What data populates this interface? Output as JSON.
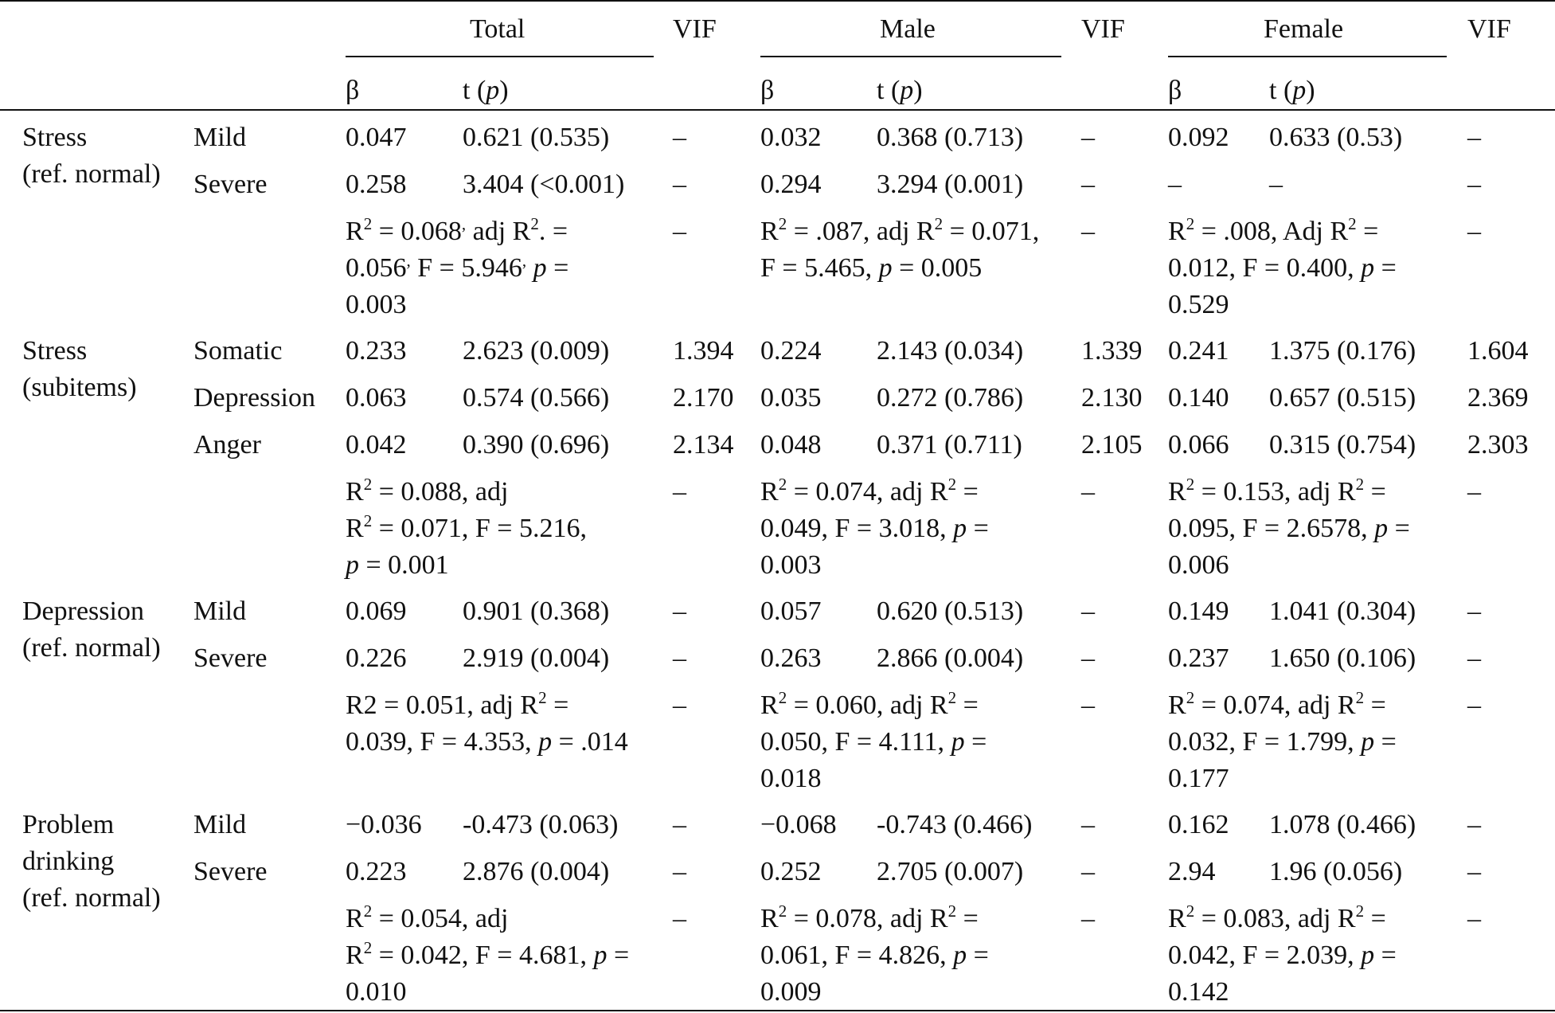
{
  "header": {
    "groups": [
      "Total",
      "Male",
      "Female"
    ],
    "vif": "VIF",
    "beta": "β",
    "t_label": "t",
    "p_label": "p"
  },
  "common": {
    "dash": "–",
    "r2": "R",
    "sq": "2",
    "adj": "adj R",
    "adj_cap": "Adj R",
    "p": "p"
  },
  "stress": {
    "label1": "Stress",
    "label2": "(ref. normal)",
    "mild": {
      "label": "Mild",
      "total_b": "0.047",
      "total_t": "0.621 (0.535)",
      "male_b": "0.032",
      "male_t": "0.368 (0.713)",
      "female_b": "0.092",
      "female_t": "0.633 (0.53)"
    },
    "severe": {
      "label": "Severe",
      "total_b": "0.258",
      "total_t": "3.404 (<0.001)",
      "male_b": "0.294",
      "male_t": "3.294 (0.001)"
    },
    "total_fit": {
      "r2": " = 0.068",
      "adj": "adj R",
      "adj_tail": ". =",
      "adj_val": "0.056",
      "f": " F = 5.946",
      "p_eq": " =",
      "p_val": "0.003"
    },
    "male_fit": {
      "r2": " = .087, adj R",
      "mid": " = 0.071,",
      "f": "F = 5.465, ",
      "p_tail": " = 0.005"
    },
    "female_fit": {
      "r2": " = .008, Adj R",
      "eq": " =",
      "f": "0.012, F = 0.400, ",
      "p_eq": " =",
      "p_val": "0.529"
    }
  },
  "subitems": {
    "label1": "Stress",
    "label2": "(subitems)",
    "somatic": {
      "label": "Somatic",
      "total_b": "0.233",
      "total_t": "2.623 (0.009)",
      "total_vif": "1.394",
      "male_b": "0.224",
      "male_t": "2.143 (0.034)",
      "male_vif": "1.339",
      "female_b": "0.241",
      "female_t": "1.375 (0.176)",
      "female_vif": "1.604"
    },
    "depression": {
      "label": "Depression",
      "total_b": "0.063",
      "total_t": "0.574 (0.566)",
      "total_vif": "2.170",
      "male_b": "0.035",
      "male_t": "0.272 (0.786)",
      "male_vif": "2.130",
      "female_b": "0.140",
      "female_t": "0.657 (0.515)",
      "female_vif": "2.369"
    },
    "anger": {
      "label": "Anger",
      "total_b": "0.042",
      "total_t": "0.390 (0.696)",
      "total_vif": "2.134",
      "male_b": "0.048",
      "male_t": "0.371 (0.711)",
      "male_vif": "2.105",
      "female_b": "0.066",
      "female_t": "0.315 (0.754)",
      "female_vif": "2.303"
    },
    "total_fit": {
      "r2": " = 0.088, adj",
      "l2": " = 0.071, F = 5.216,",
      "p_val": " = 0.001"
    },
    "male_fit": {
      "r2": " = 0.074, adj R",
      "eq": " =",
      "l2": "0.049, F = 3.018, ",
      "p_eq": " =",
      "p_val": "0.003"
    },
    "female_fit": {
      "r2": " = 0.153, adj R",
      "eq": " =",
      "l2": "0.095, F = 2.6578, ",
      "p_eq": " =",
      "p_val": "0.006"
    }
  },
  "depression": {
    "label1": "Depression",
    "label2": "(ref. normal)",
    "mild": {
      "label": "Mild",
      "total_b": "0.069",
      "total_t": "0.901 (0.368)",
      "male_b": "0.057",
      "male_t": "0.620 (0.513)",
      "female_b": "0.149",
      "female_t": "1.041 (0.304)"
    },
    "severe": {
      "label": "Severe",
      "total_b": "0.226",
      "total_t": "2.919 (0.004)",
      "male_b": "0.263",
      "male_t": "2.866 (0.004)",
      "female_b": "0.237",
      "female_t": "1.650 (0.106)"
    },
    "total_fit": {
      "r2": "R2 = 0.051, adj R",
      "eq": " =",
      "l2": "0.039, F = 4.353, ",
      "p_val": " = .014"
    },
    "male_fit": {
      "r2": " = 0.060, adj R",
      "eq": " =",
      "l2": "0.050, F = 4.111, ",
      "p_eq": " =",
      "p_val": "0.018"
    },
    "female_fit": {
      "r2": " = 0.074, adj R",
      "eq": " =",
      "l2": "0.032, F = 1.799, ",
      "p_eq": " =",
      "p_val": "0.177"
    }
  },
  "drinking": {
    "label1": "Problem",
    "label2": "drinking",
    "label3": "(ref. normal)",
    "mild": {
      "label": "Mild",
      "total_b": "−0.036",
      "total_t": "-0.473 (0.063)",
      "male_b": "−0.068",
      "male_t": "-0.743 (0.466)",
      "female_b": "0.162",
      "female_t": "1.078 (0.466)"
    },
    "severe": {
      "label": "Severe",
      "total_b": "0.223",
      "total_t": "2.876 (0.004)",
      "male_b": "0.252",
      "male_t": "2.705 (0.007)",
      "female_b": "2.94",
      "female_t": "1.96 (0.056)"
    },
    "total_fit": {
      "r2": " = 0.054, adj",
      "l2": " = 0.042, F = 4.681, ",
      "p_eq": " =",
      "p_val": "0.010"
    },
    "male_fit": {
      "r2": " = 0.078, adj R",
      "eq": " =",
      "l2": "0.061, F = 4.826, ",
      "p_eq": " =",
      "p_val": "0.009"
    },
    "female_fit": {
      "r2": " = 0.083, adj R",
      "eq": " =",
      "l2": "0.042, F = 2.039, ",
      "p_eq": " =",
      "p_val": "0.142"
    }
  }
}
